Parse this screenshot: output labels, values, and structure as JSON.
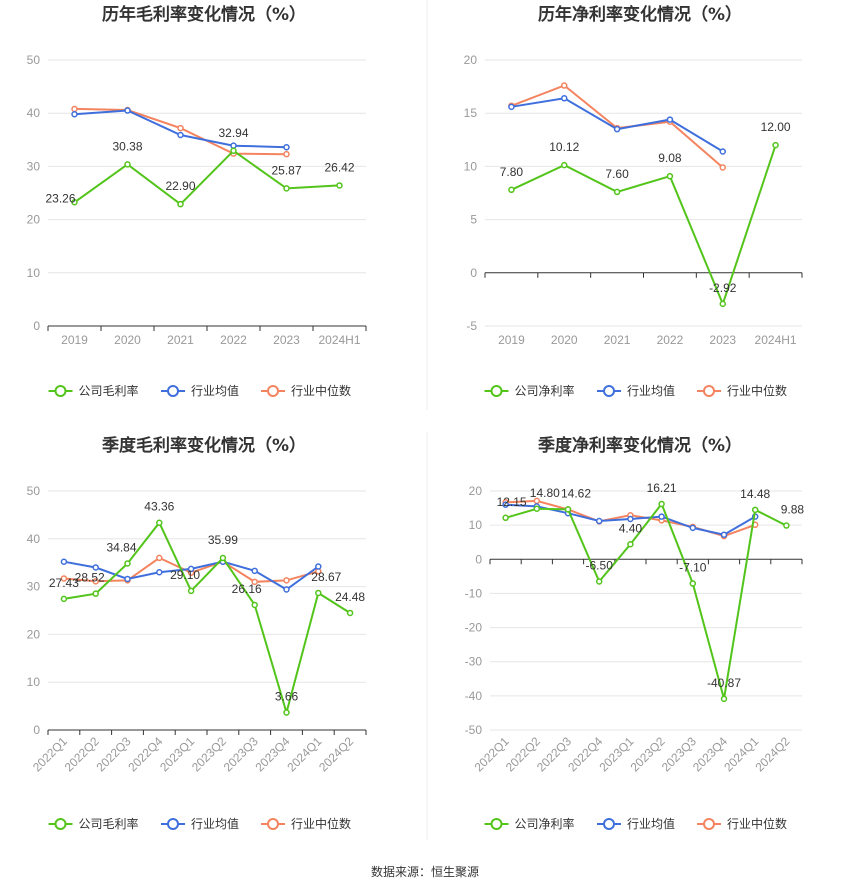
{
  "source": "数据来源：恒生聚源",
  "colors": {
    "company": "#52c41a",
    "industry_avg": "#3f6fdc",
    "industry_median": "#f4845f"
  },
  "chart_data": [
    {
      "type": "line",
      "title": "历年毛利率变化情况（%）",
      "categories": [
        "2019",
        "2020",
        "2021",
        "2022",
        "2023",
        "2024H1"
      ],
      "ylim": [
        0,
        50
      ],
      "yticks": [
        0,
        10,
        20,
        30,
        40,
        50
      ],
      "legend": "bottom",
      "series": [
        {
          "name": "公司毛利率",
          "role": "company",
          "values": [
            23.26,
            30.38,
            22.9,
            32.94,
            25.87,
            26.42
          ],
          "labels": [
            "23.26",
            "30.38",
            "22.90",
            "32.94",
            "25.87",
            "26.42"
          ]
        },
        {
          "name": "行业均值",
          "role": "industry_avg",
          "values": [
            39.8,
            40.5,
            35.9,
            33.9,
            33.6,
            null
          ]
        },
        {
          "name": "行业中位数",
          "role": "industry_median",
          "values": [
            40.8,
            40.6,
            37.2,
            32.4,
            32.3,
            null
          ]
        }
      ]
    },
    {
      "type": "line",
      "title": "历年净利率变化情况（%）",
      "categories": [
        "2019",
        "2020",
        "2021",
        "2022",
        "2023",
        "2024H1"
      ],
      "ylim": [
        -5,
        20
      ],
      "yticks": [
        -5,
        0,
        5,
        10,
        15,
        20
      ],
      "legend": "bottom",
      "series": [
        {
          "name": "公司净利率",
          "role": "company",
          "values": [
            7.8,
            10.12,
            7.6,
            9.08,
            -2.92,
            12.0
          ],
          "labels": [
            "7.80",
            "10.12",
            "7.60",
            "9.08",
            "-2.92",
            "12.00"
          ]
        },
        {
          "name": "行业均值",
          "role": "industry_avg",
          "values": [
            15.6,
            16.4,
            13.5,
            14.4,
            11.4,
            null
          ]
        },
        {
          "name": "行业中位数",
          "role": "industry_median",
          "values": [
            15.7,
            17.6,
            13.6,
            14.2,
            9.9,
            null
          ]
        }
      ]
    },
    {
      "type": "line",
      "title": "季度毛利率变化情况（%）",
      "categories": [
        "2022Q1",
        "2022Q2",
        "2022Q3",
        "2022Q4",
        "2023Q1",
        "2023Q2",
        "2023Q3",
        "2023Q4",
        "2024Q1",
        "2024Q2"
      ],
      "ylim": [
        0,
        50
      ],
      "yticks": [
        0,
        10,
        20,
        30,
        40,
        50
      ],
      "legend": "bottom",
      "series": [
        {
          "name": "公司毛利率",
          "role": "company",
          "values": [
            27.43,
            28.52,
            34.84,
            43.36,
            29.1,
            35.99,
            26.16,
            3.66,
            28.67,
            24.48
          ],
          "labels": [
            "27.43",
            "28.52",
            "34.84",
            "43.36",
            "29.10",
            "35.99",
            "26.16",
            "3.66",
            "28.67",
            "24.48"
          ]
        },
        {
          "name": "行业均值",
          "role": "industry_avg",
          "values": [
            35.2,
            34.0,
            31.6,
            33.0,
            33.7,
            35.2,
            33.3,
            29.4,
            34.2,
            null
          ]
        },
        {
          "name": "行业中位数",
          "role": "industry_median",
          "values": [
            31.7,
            31.1,
            31.3,
            36.0,
            32.9,
            35.2,
            31.0,
            31.3,
            33.2,
            null
          ]
        }
      ]
    },
    {
      "type": "line",
      "title": "季度净利率变化情况（%）",
      "categories": [
        "2022Q1",
        "2022Q2",
        "2022Q3",
        "2022Q4",
        "2023Q1",
        "2023Q2",
        "2023Q3",
        "2023Q4",
        "2024Q1",
        "2024Q2"
      ],
      "ylim": [
        -50,
        20
      ],
      "yticks": [
        -50,
        -40,
        -30,
        -20,
        -10,
        0,
        10,
        20
      ],
      "legend": "bottom",
      "series": [
        {
          "name": "公司净利率",
          "role": "company",
          "values": [
            12.15,
            14.8,
            14.62,
            -6.5,
            4.4,
            16.21,
            -7.1,
            -40.87,
            14.48,
            9.88
          ],
          "labels": [
            "12.15",
            "14.80",
            "14.62",
            "-6.50",
            "4.40",
            "16.21",
            "-7.10",
            "-40.87",
            "14.48",
            "9.88"
          ]
        },
        {
          "name": "行业均值",
          "role": "industry_avg",
          "values": [
            16.0,
            15.5,
            13.5,
            11.2,
            11.8,
            12.5,
            9.2,
            7.2,
            12.5,
            null
          ]
        },
        {
          "name": "行业中位数",
          "role": "industry_median",
          "values": [
            16.7,
            17.1,
            14.6,
            11.1,
            12.9,
            11.4,
            9.5,
            6.8,
            10.1,
            null
          ]
        }
      ]
    }
  ]
}
